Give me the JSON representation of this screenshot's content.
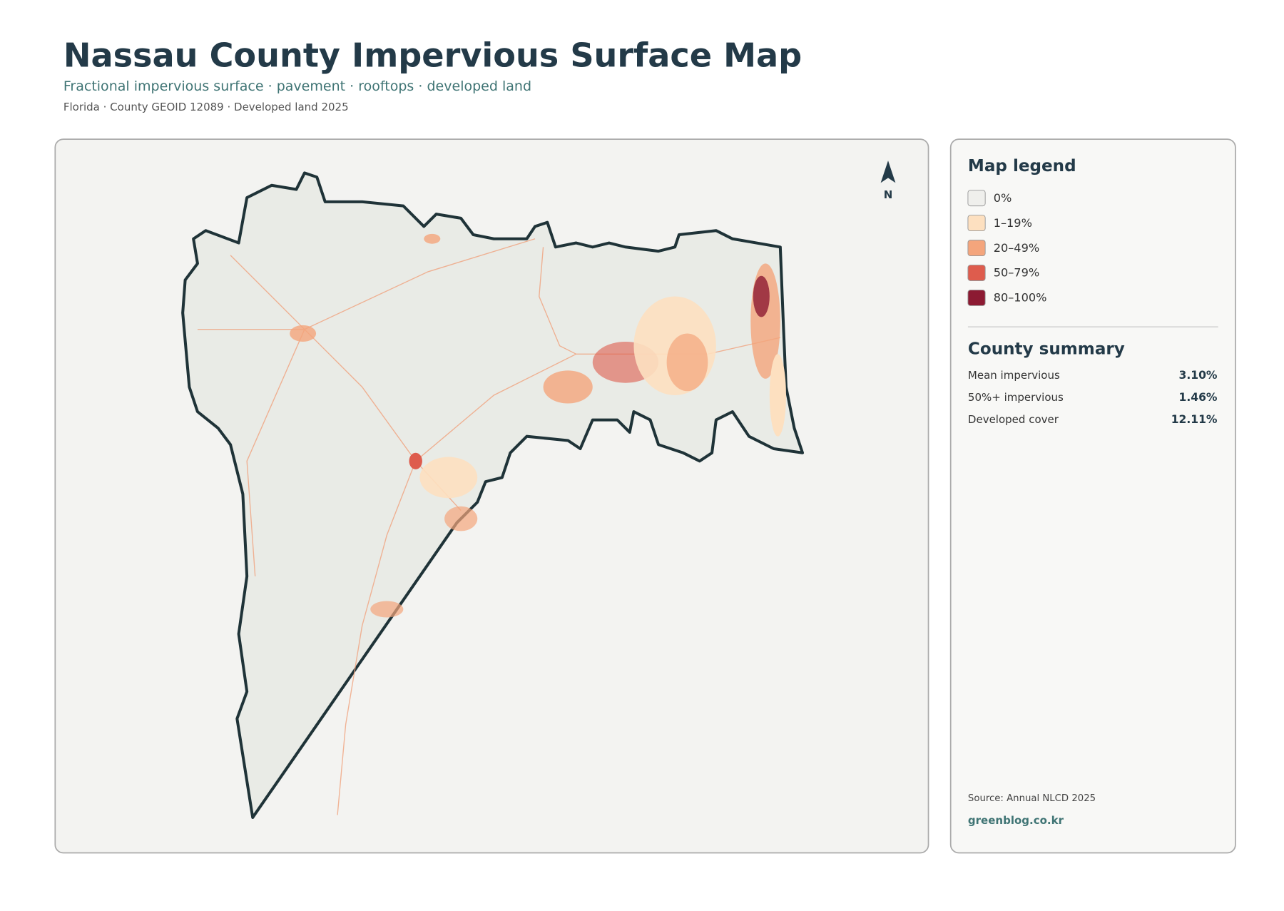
{
  "header": {
    "title": "Nassau County Impervious Surface Map",
    "subtitle": "Fractional impervious surface · pavement · rooftops · developed land",
    "meta": "Florida · County GEOID 12089 · Developed land 2025"
  },
  "map": {
    "north_label": "N"
  },
  "legend": {
    "title": "Map legend",
    "items": [
      {
        "label": "0%",
        "color": "#efefec"
      },
      {
        "label": "1–19%",
        "color": "#fde0c0"
      },
      {
        "label": "20–49%",
        "color": "#f4a57c"
      },
      {
        "label": "50–79%",
        "color": "#de5c4d"
      },
      {
        "label": "80–100%",
        "color": "#8c1a32"
      }
    ]
  },
  "summary": {
    "title": "County summary",
    "rows": [
      {
        "label": "Mean impervious",
        "value": "3.10%"
      },
      {
        "label": "50%+ impervious",
        "value": "1.46%"
      },
      {
        "label": "Developed cover",
        "value": "12.11%"
      }
    ]
  },
  "footer": {
    "source": "Source: Annual NLCD 2025",
    "brand": "greenblog.co.kr"
  }
}
